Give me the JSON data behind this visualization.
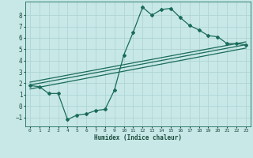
{
  "xlabel": "Humidex (Indice chaleur)",
  "bg_color": "#c8e8e8",
  "grid_color": "#b0d4d4",
  "line_color": "#1a6b5a",
  "xlim": [
    -0.5,
    23.5
  ],
  "ylim": [
    -1.8,
    9.2
  ],
  "xticks": [
    0,
    1,
    2,
    3,
    4,
    5,
    6,
    7,
    8,
    9,
    10,
    11,
    12,
    13,
    14,
    15,
    16,
    17,
    18,
    19,
    20,
    21,
    22,
    23
  ],
  "yticks": [
    -1,
    0,
    1,
    2,
    3,
    4,
    5,
    6,
    7,
    8
  ],
  "main_x": [
    0,
    1,
    2,
    3,
    4,
    5,
    6,
    7,
    8,
    9,
    10,
    11,
    12,
    13,
    14,
    15,
    16,
    17,
    18,
    19,
    20,
    21,
    22,
    23
  ],
  "main_y": [
    1.8,
    1.7,
    1.1,
    1.1,
    -1.2,
    -0.8,
    -0.7,
    -0.4,
    -0.3,
    1.4,
    4.5,
    6.5,
    8.7,
    8.0,
    8.5,
    8.6,
    7.8,
    7.1,
    6.7,
    6.2,
    6.1,
    5.5,
    5.5,
    5.4
  ],
  "trend1_x": [
    0,
    23
  ],
  "trend1_y": [
    1.5,
    5.1
  ],
  "trend2_x": [
    0,
    23
  ],
  "trend2_y": [
    1.85,
    5.4
  ],
  "trend3_x": [
    0,
    23
  ],
  "trend3_y": [
    2.1,
    5.65
  ]
}
